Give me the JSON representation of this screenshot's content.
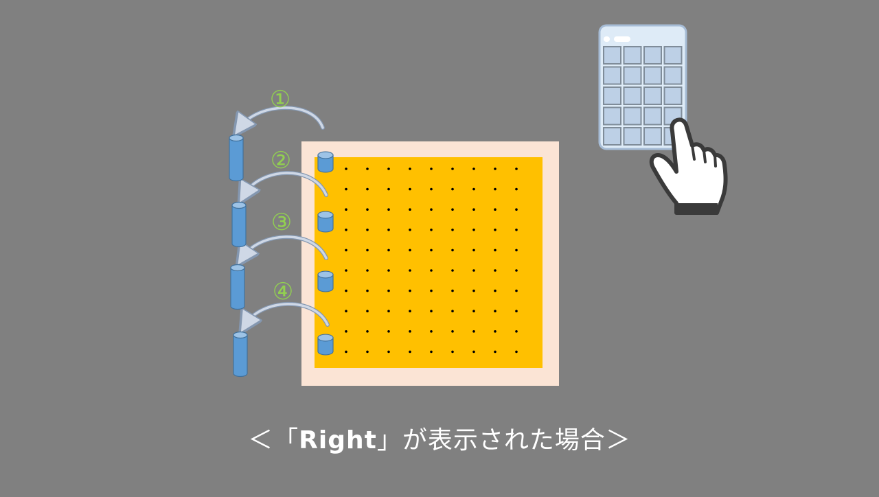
{
  "steps": [
    {
      "label": "①"
    },
    {
      "label": "②"
    },
    {
      "label": "③"
    },
    {
      "label": "④"
    }
  ],
  "board": {
    "rows": 10,
    "cols": 9
  },
  "caption": {
    "prefix": "＜「",
    "keyword": "Right",
    "suffix": "」が表示された場合＞"
  },
  "colors": {
    "background": "#808080",
    "board_frame": "#fbe4d5",
    "board_surface": "#ffc000",
    "peg_fill": "#5b9bd5",
    "peg_top": "#9dc3e6",
    "peg_stroke": "#41719c",
    "step_label": "#92d050",
    "arrow_fill": "#cfd8e6",
    "arrow_stroke": "#8497b0"
  },
  "icons": {
    "keypad": "keypad-icon",
    "hand": "pointing-hand-icon"
  }
}
